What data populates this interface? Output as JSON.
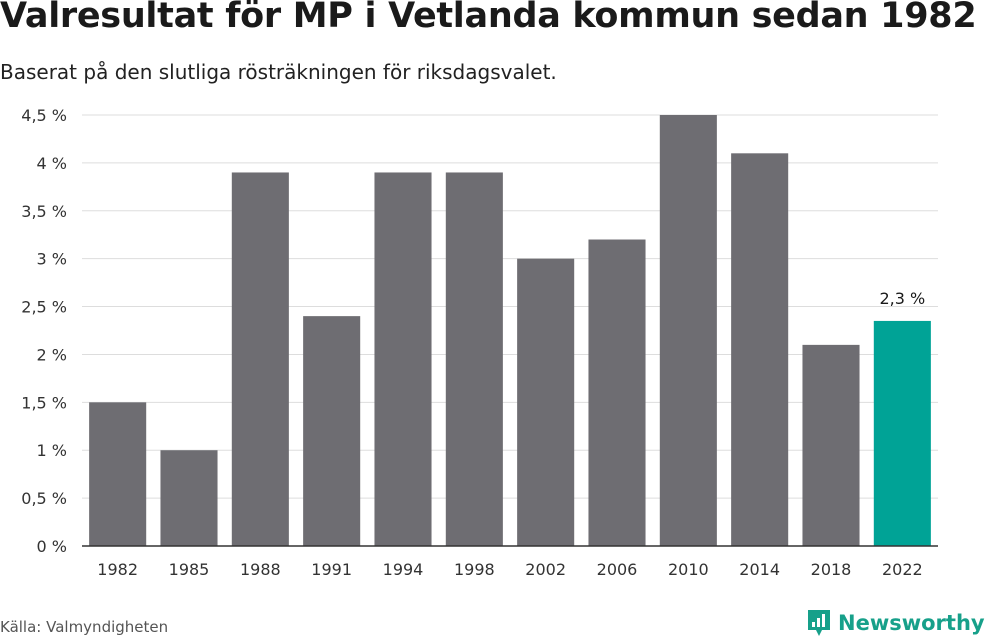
{
  "header": {
    "title": "Valresultat för MP i Vetlanda kommun sedan 1982",
    "subtitle": "Baserat på den slutliga rösträkningen för riksdagsvalet."
  },
  "footer": {
    "source": "Källa: Valmyndigheten",
    "brand": "Newsworthy"
  },
  "colors": {
    "bar": "#6e6d72",
    "highlight": "#00a396",
    "grid": "#dddddd",
    "axis": "#333333",
    "brand": "#17a08a"
  },
  "chart_data": {
    "type": "bar",
    "categories": [
      "1982",
      "1985",
      "1988",
      "1991",
      "1994",
      "1998",
      "2002",
      "2006",
      "2010",
      "2014",
      "2018",
      "2022"
    ],
    "values": [
      1.5,
      1.0,
      3.9,
      2.4,
      3.9,
      3.9,
      3.0,
      3.2,
      4.5,
      4.1,
      2.1,
      2.35
    ],
    "highlight_index": 11,
    "data_labels": [
      {
        "index": 11,
        "text": "2,3 %"
      }
    ],
    "ylim": [
      0,
      4.5
    ],
    "yticks": [
      0,
      0.5,
      1,
      1.5,
      2,
      2.5,
      3,
      3.5,
      4,
      4.5
    ],
    "ytick_labels": [
      "0 %",
      "0,5 %",
      "1 %",
      "1,5 %",
      "2 %",
      "2,5 %",
      "3 %",
      "3,5 %",
      "4 %",
      "4,5 %"
    ],
    "grid": true,
    "legend": "none",
    "xlabel": "",
    "ylabel": ""
  }
}
